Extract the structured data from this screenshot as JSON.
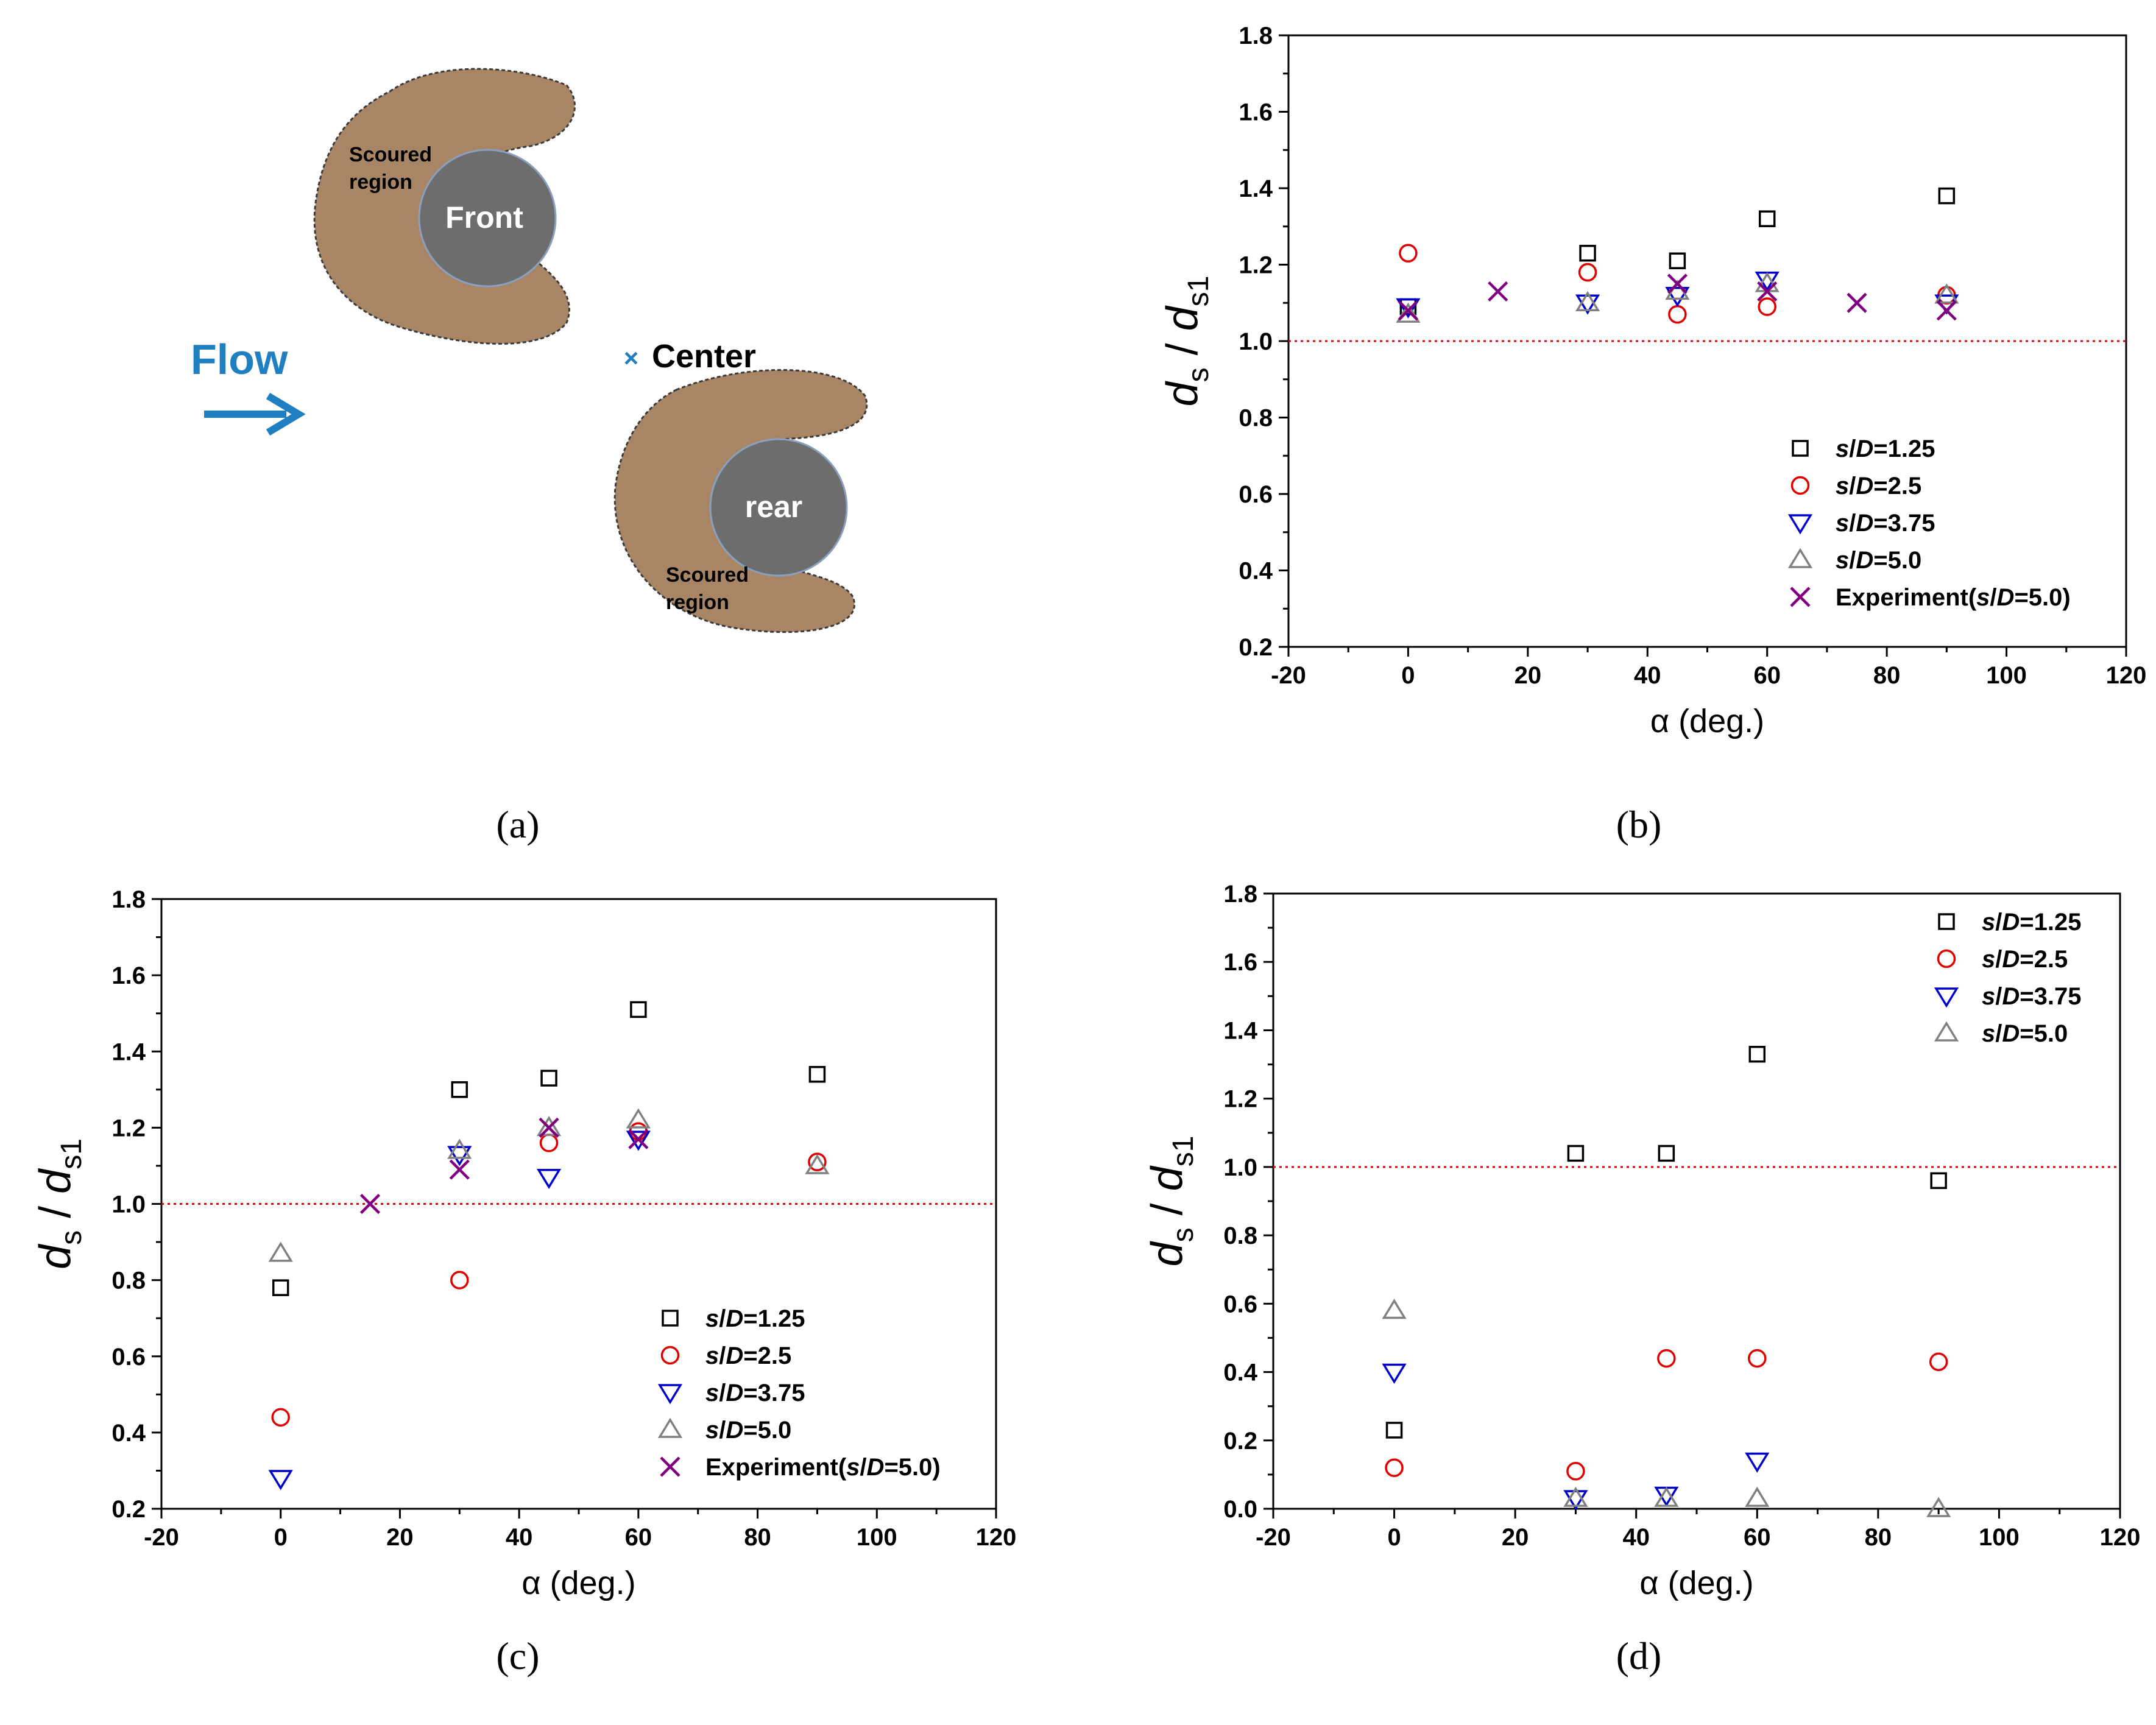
{
  "colors": {
    "series_black": "#000000",
    "series_red": "#e00000",
    "series_blue": "#0000cc",
    "series_gray": "#808080",
    "series_purple": "#800080",
    "reference_line": "#e00000",
    "scour_region": "#a88665",
    "pier": "#6d6d6d",
    "flow_arrow": "#1f7fc1"
  },
  "panels": {
    "a": {
      "label": "(a)"
    },
    "b": {
      "label": "(b)"
    },
    "c": {
      "label": "(c)"
    },
    "d": {
      "label": "(d)"
    }
  },
  "diagram": {
    "flow_label": "Flow",
    "center_label": "Center",
    "front_pier_label": "Front",
    "rear_pier_label": "rear",
    "front_scour_label": [
      "Scoured",
      "region"
    ],
    "rear_scour_label": [
      "Scoured",
      "region"
    ],
    "center_marker": "×"
  },
  "chart_data": [
    {
      "id": "b",
      "type": "scatter",
      "title": "",
      "xlabel": "α (deg.)",
      "ylabel": {
        "main": "d",
        "sub1": "s",
        "sep": " / ",
        "main2": "d",
        "sub2": "s1"
      },
      "xlim": [
        -20,
        120
      ],
      "ylim": [
        0.2,
        1.8
      ],
      "xticks": [
        -20,
        0,
        20,
        40,
        60,
        80,
        100,
        120
      ],
      "yticks": [
        0.2,
        0.4,
        0.6,
        0.8,
        1.0,
        1.2,
        1.4,
        1.6,
        1.8
      ],
      "reference_line": 1.0,
      "legend_position": "lower-right",
      "series": [
        {
          "name": "s/D=1.25",
          "var": "s",
          "slash": "/",
          "var2": "D",
          "rest": "=1.25",
          "marker": "square",
          "color": "#000000",
          "points": [
            [
              0,
              1.09
            ],
            [
              30,
              1.23
            ],
            [
              45,
              1.21
            ],
            [
              60,
              1.32
            ],
            [
              90,
              1.38
            ]
          ]
        },
        {
          "name": "s/D=2.5",
          "var": "s",
          "slash": "/",
          "var2": "D",
          "rest": "=2.5",
          "marker": "circle",
          "color": "#e00000",
          "points": [
            [
              0,
              1.23
            ],
            [
              30,
              1.18
            ],
            [
              45,
              1.07
            ],
            [
              60,
              1.09
            ],
            [
              90,
              1.12
            ]
          ]
        },
        {
          "name": "s/D=3.75",
          "var": "s",
          "slash": "/",
          "var2": "D",
          "rest": "=3.75",
          "marker": "triangle-down",
          "color": "#0000cc",
          "points": [
            [
              0,
              1.09
            ],
            [
              30,
              1.1
            ],
            [
              45,
              1.12
            ],
            [
              60,
              1.16
            ],
            [
              90,
              1.1
            ]
          ]
        },
        {
          "name": "s/D=5.0",
          "var": "s",
          "slash": "/",
          "var2": "D",
          "rest": "=5.0",
          "marker": "triangle-up",
          "color": "#808080",
          "points": [
            [
              0,
              1.07
            ],
            [
              30,
              1.1
            ],
            [
              45,
              1.13
            ],
            [
              60,
              1.15
            ],
            [
              90,
              1.12
            ]
          ]
        },
        {
          "name": "Experiment(s/D=5.0)",
          "pre": "Experiment(",
          "var": "s",
          "slash": "/",
          "var2": "D",
          "rest": "=5.0)",
          "marker": "cross",
          "color": "#800080",
          "points": [
            [
              0,
              1.08
            ],
            [
              15,
              1.13
            ],
            [
              45,
              1.15
            ],
            [
              60,
              1.13
            ],
            [
              75,
              1.1
            ],
            [
              90,
              1.08
            ]
          ]
        }
      ]
    },
    {
      "id": "c",
      "type": "scatter",
      "title": "",
      "xlabel": "α (deg.)",
      "ylabel": {
        "main": "d",
        "sub1": "s",
        "sep": " / ",
        "main2": "d",
        "sub2": "s1"
      },
      "xlim": [
        -20,
        120
      ],
      "ylim": [
        0.2,
        1.8
      ],
      "xticks": [
        -20,
        0,
        20,
        40,
        60,
        80,
        100,
        120
      ],
      "yticks": [
        0.2,
        0.4,
        0.6,
        0.8,
        1.0,
        1.2,
        1.4,
        1.6,
        1.8
      ],
      "reference_line": 1.0,
      "legend_position": "lower-right",
      "series": [
        {
          "name": "s/D=1.25",
          "var": "s",
          "slash": "/",
          "var2": "D",
          "rest": "=1.25",
          "marker": "square",
          "color": "#000000",
          "points": [
            [
              0,
              0.78
            ],
            [
              30,
              1.3
            ],
            [
              45,
              1.33
            ],
            [
              60,
              1.51
            ],
            [
              90,
              1.34
            ]
          ]
        },
        {
          "name": "s/D=2.5",
          "var": "s",
          "slash": "/",
          "var2": "D",
          "rest": "=2.5",
          "marker": "circle",
          "color": "#e00000",
          "points": [
            [
              0,
              0.44
            ],
            [
              30,
              0.8
            ],
            [
              45,
              1.16
            ],
            [
              60,
              1.19
            ],
            [
              90,
              1.11
            ]
          ]
        },
        {
          "name": "s/D=3.75",
          "var": "s",
          "slash": "/",
          "var2": "D",
          "rest": "=3.75",
          "marker": "triangle-down",
          "color": "#0000cc",
          "points": [
            [
              0,
              0.28
            ],
            [
              30,
              1.13
            ],
            [
              45,
              1.07
            ],
            [
              60,
              1.17
            ]
          ]
        },
        {
          "name": "s/D=5.0",
          "var": "s",
          "slash": "/",
          "var2": "D",
          "rest": "=5.0",
          "marker": "triangle-up",
          "color": "#808080",
          "points": [
            [
              0,
              0.87
            ],
            [
              30,
              1.14
            ],
            [
              45,
              1.2
            ],
            [
              60,
              1.22
            ],
            [
              90,
              1.1
            ]
          ]
        },
        {
          "name": "Experiment(s/D=5.0)",
          "pre": "Experiment(",
          "var": "s",
          "slash": "/",
          "var2": "D",
          "rest": "=5.0)",
          "marker": "cross",
          "color": "#800080",
          "points": [
            [
              15,
              1.0
            ],
            [
              30,
              1.09
            ],
            [
              45,
              1.2
            ],
            [
              60,
              1.17
            ]
          ]
        }
      ]
    },
    {
      "id": "d",
      "type": "scatter",
      "title": "",
      "xlabel": "α (deg.)",
      "ylabel": {
        "main": "d",
        "sub1": "s",
        "sep": " / ",
        "main2": "d",
        "sub2": "s1"
      },
      "xlim": [
        -20,
        120
      ],
      "ylim": [
        0.0,
        1.8
      ],
      "xticks": [
        -20,
        0,
        20,
        40,
        60,
        80,
        100,
        120
      ],
      "yticks": [
        0.0,
        0.2,
        0.4,
        0.6,
        0.8,
        1.0,
        1.2,
        1.4,
        1.6,
        1.8
      ],
      "reference_line": 1.0,
      "legend_position": "top-right",
      "series": [
        {
          "name": "s/D=1.25",
          "var": "s",
          "slash": "/",
          "var2": "D",
          "rest": "=1.25",
          "marker": "square",
          "color": "#000000",
          "points": [
            [
              0,
              0.23
            ],
            [
              30,
              1.04
            ],
            [
              45,
              1.04
            ],
            [
              60,
              1.33
            ],
            [
              90,
              0.96
            ]
          ]
        },
        {
          "name": "s/D=2.5",
          "var": "s",
          "slash": "/",
          "var2": "D",
          "rest": "=2.5",
          "marker": "circle",
          "color": "#e00000",
          "points": [
            [
              0,
              0.12
            ],
            [
              30,
              0.11
            ],
            [
              45,
              0.44
            ],
            [
              60,
              0.44
            ],
            [
              90,
              0.43
            ]
          ]
        },
        {
          "name": "s/D=3.75",
          "var": "s",
          "slash": "/",
          "var2": "D",
          "rest": "=3.75",
          "marker": "triangle-down",
          "color": "#0000cc",
          "points": [
            [
              0,
              0.4
            ],
            [
              30,
              0.03
            ],
            [
              45,
              0.04
            ],
            [
              60,
              0.14
            ]
          ]
        },
        {
          "name": "s/D=5.0",
          "var": "s",
          "slash": "/",
          "var2": "D",
          "rest": "=5.0",
          "marker": "triangle-up",
          "color": "#808080",
          "points": [
            [
              0,
              0.58
            ],
            [
              30,
              0.03
            ],
            [
              45,
              0.03
            ],
            [
              60,
              0.03
            ],
            [
              90,
              0.0
            ]
          ]
        }
      ]
    }
  ]
}
